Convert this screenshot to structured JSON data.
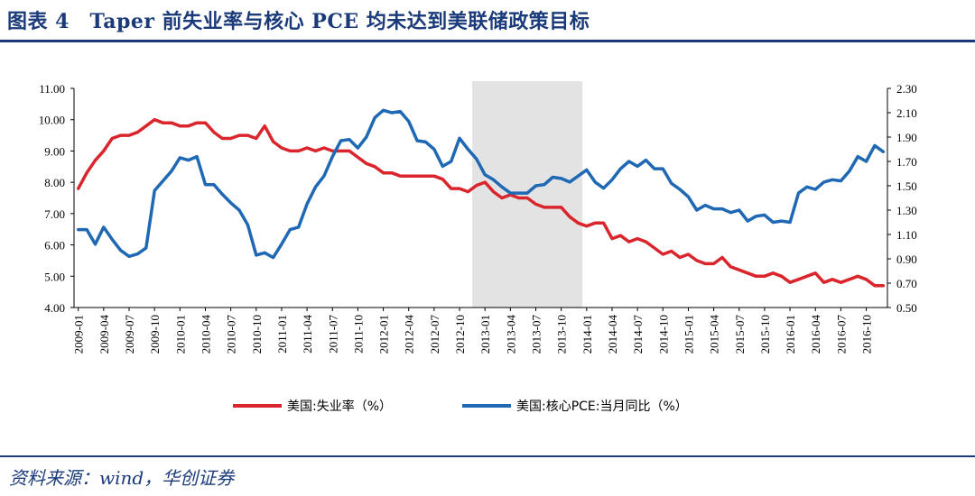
{
  "figure": {
    "title": "图表 4　Taper 前失业率与核心 PCE 均未达到美联储政策目标",
    "source": "资料来源：wind，华创证券"
  },
  "chart_data": {
    "type": "line",
    "x": [
      "2009-01",
      "2009-02",
      "2009-03",
      "2009-04",
      "2009-05",
      "2009-06",
      "2009-07",
      "2009-08",
      "2009-09",
      "2009-10",
      "2009-11",
      "2009-12",
      "2010-01",
      "2010-02",
      "2010-03",
      "2010-04",
      "2010-05",
      "2010-06",
      "2010-07",
      "2010-08",
      "2010-09",
      "2010-10",
      "2010-11",
      "2010-12",
      "2011-01",
      "2011-02",
      "2011-03",
      "2011-04",
      "2011-05",
      "2011-06",
      "2011-07",
      "2011-08",
      "2011-09",
      "2011-10",
      "2011-11",
      "2011-12",
      "2012-01",
      "2012-02",
      "2012-03",
      "2012-04",
      "2012-05",
      "2012-06",
      "2012-07",
      "2012-08",
      "2012-09",
      "2012-10",
      "2012-11",
      "2012-12",
      "2013-01",
      "2013-02",
      "2013-03",
      "2013-04",
      "2013-05",
      "2013-06",
      "2013-07",
      "2013-08",
      "2013-09",
      "2013-10",
      "2013-11",
      "2013-12",
      "2014-01",
      "2014-02",
      "2014-03",
      "2014-04",
      "2014-05",
      "2014-06",
      "2014-07",
      "2014-08",
      "2014-09",
      "2014-10",
      "2014-11",
      "2014-12",
      "2015-01",
      "2015-02",
      "2015-03",
      "2015-04",
      "2015-05",
      "2015-06",
      "2015-07",
      "2015-08",
      "2015-09",
      "2015-10",
      "2015-11",
      "2015-12",
      "2016-01",
      "2016-02",
      "2016-03",
      "2016-04",
      "2016-05",
      "2016-06",
      "2016-07",
      "2016-08",
      "2016-09",
      "2016-10",
      "2016-11",
      "2016-12"
    ],
    "x_tick_labels": [
      "2009-01",
      "2009-04",
      "2009-07",
      "2009-10",
      "2010-01",
      "2010-04",
      "2010-07",
      "2010-10",
      "2011-01",
      "2011-04",
      "2011-07",
      "2011-10",
      "2012-01",
      "2012-04",
      "2012-07",
      "2012-10",
      "2013-01",
      "2013-04",
      "2013-07",
      "2013-10",
      "2014-01",
      "2014-04",
      "2014-07",
      "2014-10",
      "2015-01",
      "2015-04",
      "2015-07",
      "2015-10",
      "2016-01",
      "2016-04",
      "2016-07",
      "2016-10"
    ],
    "left_axis": {
      "ylim": [
        4.0,
        11.0
      ],
      "ticks": [
        "4.00",
        "5.00",
        "6.00",
        "7.00",
        "8.00",
        "9.00",
        "10.00",
        "11.00"
      ]
    },
    "right_axis": {
      "ylim": [
        0.5,
        2.3
      ],
      "ticks": [
        "0.50",
        "0.70",
        "0.90",
        "1.10",
        "1.30",
        "1.50",
        "1.70",
        "1.90",
        "2.10",
        "2.30"
      ]
    },
    "shaded_region": {
      "from": "2012-12",
      "to": "2013-12",
      "color": "#e3e3e3"
    },
    "series": [
      {
        "name": "美国:失业率（%）",
        "axis": "left",
        "color": "#d9252b",
        "values": [
          7.8,
          8.3,
          8.7,
          9.0,
          9.4,
          9.5,
          9.5,
          9.6,
          9.8,
          10.0,
          9.9,
          9.9,
          9.8,
          9.8,
          9.9,
          9.9,
          9.6,
          9.4,
          9.4,
          9.5,
          9.5,
          9.4,
          9.8,
          9.3,
          9.1,
          9.0,
          9.0,
          9.1,
          9.0,
          9.1,
          9.0,
          9.0,
          9.0,
          8.8,
          8.6,
          8.5,
          8.3,
          8.3,
          8.2,
          8.2,
          8.2,
          8.2,
          8.2,
          8.1,
          7.8,
          7.8,
          7.7,
          7.9,
          8.0,
          7.7,
          7.5,
          7.6,
          7.5,
          7.5,
          7.3,
          7.2,
          7.2,
          7.2,
          6.9,
          6.7,
          6.6,
          6.7,
          6.7,
          6.2,
          6.3,
          6.1,
          6.2,
          6.1,
          5.9,
          5.7,
          5.8,
          5.6,
          5.7,
          5.5,
          5.4,
          5.4,
          5.6,
          5.3,
          5.2,
          5.1,
          5.0,
          5.0,
          5.1,
          5.0,
          4.8,
          4.9,
          5.0,
          5.1,
          4.8,
          4.9,
          4.8,
          4.9,
          5.0,
          4.9,
          4.7,
          4.7
        ]
      },
      {
        "name": "美国:核心PCE:当月同比（%）",
        "axis": "right",
        "color": "#1f68b4",
        "values": [
          1.14,
          1.14,
          1.02,
          1.16,
          1.06,
          0.97,
          0.92,
          0.94,
          0.99,
          1.46,
          1.54,
          1.62,
          1.73,
          1.71,
          1.74,
          1.51,
          1.51,
          1.43,
          1.36,
          1.3,
          1.18,
          0.93,
          0.95,
          0.91,
          1.02,
          1.14,
          1.16,
          1.35,
          1.49,
          1.58,
          1.74,
          1.87,
          1.88,
          1.81,
          1.9,
          2.06,
          2.12,
          2.1,
          2.11,
          2.03,
          1.87,
          1.86,
          1.8,
          1.66,
          1.7,
          1.89,
          1.8,
          1.72,
          1.59,
          1.55,
          1.49,
          1.44,
          1.44,
          1.44,
          1.5,
          1.51,
          1.57,
          1.56,
          1.53,
          1.58,
          1.63,
          1.53,
          1.48,
          1.55,
          1.64,
          1.7,
          1.66,
          1.71,
          1.64,
          1.64,
          1.52,
          1.47,
          1.41,
          1.3,
          1.34,
          1.31,
          1.31,
          1.28,
          1.3,
          1.21,
          1.25,
          1.26,
          1.2,
          1.21,
          1.2,
          1.44,
          1.49,
          1.47,
          1.53,
          1.55,
          1.54,
          1.62,
          1.74,
          1.7,
          1.83,
          1.78
        ]
      }
    ]
  }
}
